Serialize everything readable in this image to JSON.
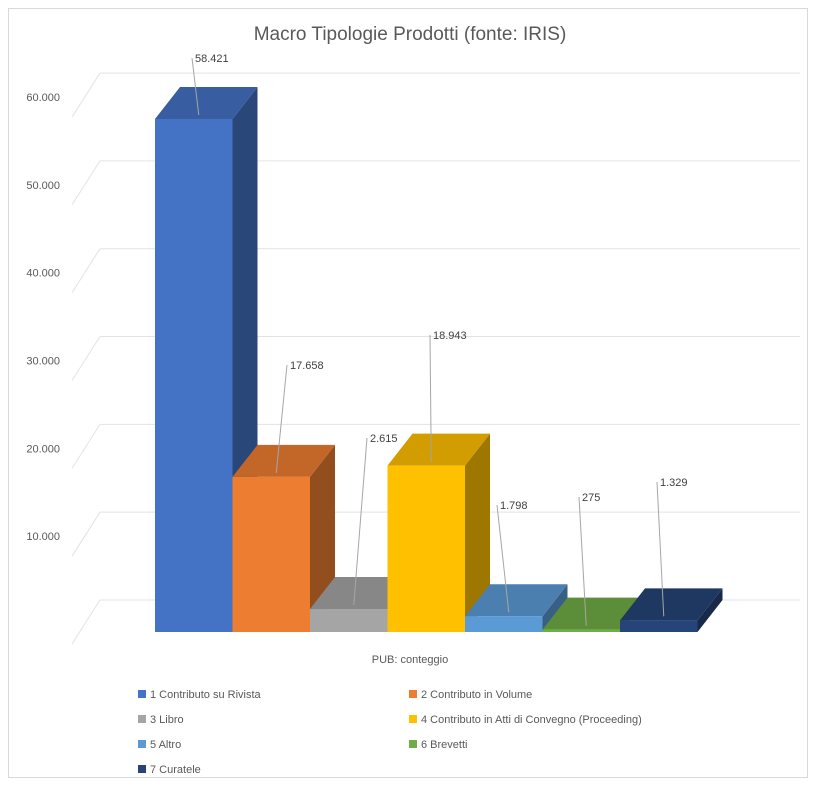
{
  "chart_data": {
    "type": "bar",
    "title": "Macro Tipologie Prodotti (fonte: IRIS)",
    "xlabel": "PUB: conteggio",
    "ylim": [
      0,
      60000
    ],
    "yticks": [
      "10.000",
      "20.000",
      "30.000",
      "40.000",
      "50.000",
      "60.000"
    ],
    "ytick_values": [
      10000,
      20000,
      30000,
      40000,
      50000,
      60000
    ],
    "grid": true,
    "legend_position": "bottom",
    "series": [
      {
        "name": "1 Contributo su Rivista",
        "value": 58421,
        "label": "58.421",
        "color": "#4472c4"
      },
      {
        "name": "2 Contributo in Volume",
        "value": 17658,
        "label": "17.658",
        "color": "#ed7d31"
      },
      {
        "name": "3 Libro",
        "value": 2615,
        "label": "2.615",
        "color": "#a5a5a5"
      },
      {
        "name": "4 Contributo in Atti di Convegno (Proceeding)",
        "value": 18943,
        "label": "18.943",
        "color": "#ffc000"
      },
      {
        "name": "5 Altro",
        "value": 1798,
        "label": "1.798",
        "color": "#5b9bd5"
      },
      {
        "name": "6 Brevetti",
        "value": 275,
        "label": "275",
        "color": "#70ad47"
      },
      {
        "name": "7 Curatele",
        "value": 1329,
        "label": "1.329",
        "color": "#264478"
      }
    ]
  }
}
